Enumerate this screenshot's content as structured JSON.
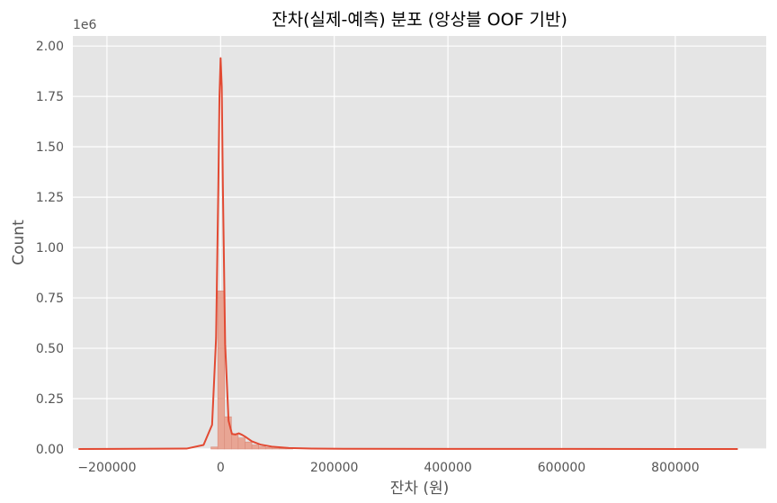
{
  "chart_data": {
    "type": "bar",
    "title": "잔차(실제-예측) 분포 (앙상블 OOF 기반)",
    "xlabel": "잔차 (원)",
    "ylabel": "Count",
    "y_offset_text": "1e6",
    "xlim": [
      -260000,
      960000
    ],
    "ylim": [
      0,
      2.05
    ],
    "x_ticks": [
      -200000,
      0,
      200000,
      400000,
      600000,
      800000
    ],
    "x_tick_labels": [
      "−200000",
      "0",
      "200000",
      "400000",
      "600000",
      "800000"
    ],
    "y_ticks": [
      0,
      0.25,
      0.5,
      0.75,
      1.0,
      1.25,
      1.5,
      1.75,
      2.0
    ],
    "y_tick_labels": [
      "0.00",
      "0.25",
      "0.50",
      "0.75",
      "1.00",
      "1.25",
      "1.50",
      "1.75",
      "2.00"
    ],
    "grid": true,
    "bin_width": 12000,
    "histogram": {
      "bin_starts": [
        -17000,
        -5000,
        7000,
        19000,
        31000,
        43000,
        55000,
        67000,
        79000,
        91000,
        103000,
        115000
      ],
      "counts": [
        0.01,
        0.785,
        0.16,
        0.075,
        0.055,
        0.035,
        0.02,
        0.013,
        0.008,
        0.005,
        0.003,
        0.002
      ]
    },
    "kde": {
      "x": [
        -250000,
        -60000,
        -30000,
        -15000,
        -8000,
        -4000,
        -2000,
        0,
        2000,
        4000,
        8000,
        14000,
        20000,
        26000,
        32000,
        38000,
        45000,
        55000,
        70000,
        90000,
        120000,
        160000,
        220000,
        400000,
        600000,
        910000
      ],
      "y": [
        0,
        0.002,
        0.02,
        0.12,
        0.55,
        1.3,
        1.75,
        1.94,
        1.8,
        1.3,
        0.52,
        0.14,
        0.075,
        0.072,
        0.078,
        0.07,
        0.058,
        0.038,
        0.022,
        0.012,
        0.005,
        0.002,
        0.001,
        0.0005,
        0.0003,
        0.0002
      ]
    },
    "colors": {
      "plot_background": "#e5e5e5",
      "grid": "#ffffff",
      "bar_fill": "#e8a594",
      "bar_edge": "#d98a7a",
      "kde_line": "#e24a33"
    }
  }
}
